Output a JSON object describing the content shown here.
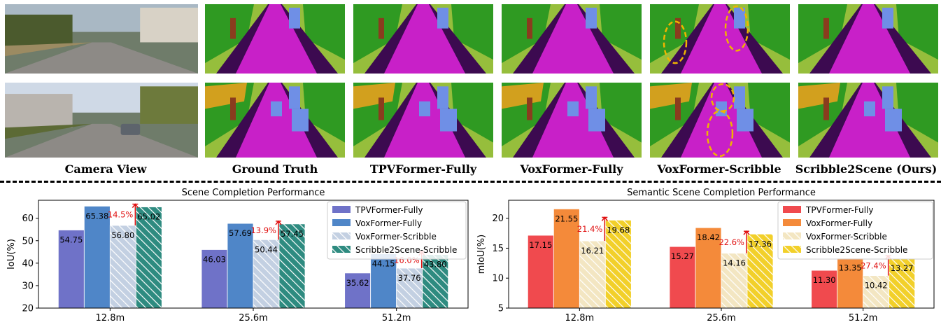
{
  "columns": [
    "Camera View",
    "Ground Truth",
    "TPVFormer-Fully",
    "VoxFormer-Fully",
    "VoxFormer-Scribble",
    "Scribble2Scene (Ours)"
  ],
  "palette": {
    "road": "#c820c8",
    "sidewalk": "#3c0a50",
    "vegetation": "#2f9a22",
    "terrain": "#96be3c",
    "car": "#6f8fe6",
    "building": "#d2a01e",
    "trunk": "#8a3c1e",
    "highlight": "#f0b400"
  },
  "chart_data": [
    {
      "type": "bar",
      "title": "Scene Completion Performance",
      "ylabel": "IoU(%)",
      "ylim": [
        20,
        68
      ],
      "yticks": [
        20,
        30,
        40,
        50,
        60
      ],
      "categories": [
        "12.8m",
        "25.6m",
        "51.2m"
      ],
      "series": [
        {
          "name": "TPVFormer-Fully",
          "color": "#6f72c8",
          "pattern": "solid",
          "values": [
            54.75,
            46.03,
            35.62
          ]
        },
        {
          "name": "VoxFormer-Fully",
          "color": "#4f86c8",
          "pattern": "solid",
          "values": [
            65.38,
            57.69,
            44.15
          ]
        },
        {
          "name": "VoxFormer-Scribble",
          "color": "#c3d0e2",
          "pattern": "hatch",
          "values": [
            56.8,
            50.44,
            37.76
          ]
        },
        {
          "name": "Scribble2Scene-Scribble",
          "color": "#2e8b80",
          "pattern": "hatch",
          "values": [
            65.02,
            57.45,
            43.8
          ]
        }
      ],
      "value_labels": [
        [
          "54.75",
          "46.03",
          "35.62"
        ],
        [
          "65.38",
          "57.69",
          "44.15"
        ],
        [
          "56.80",
          "50.44",
          "37.76"
        ],
        [
          "65.02",
          "57.45",
          "43.80"
        ]
      ],
      "annotations": [
        "14.5%",
        "13.9%",
        "16.0%"
      ],
      "legend": "top-right"
    },
    {
      "type": "bar",
      "title": "Semantic Scene Completion Performance",
      "ylabel": "mIoU(%)",
      "ylim": [
        5,
        23
      ],
      "yticks": [
        5,
        10,
        15,
        20
      ],
      "categories": [
        "12.8m",
        "25.6m",
        "51.2m"
      ],
      "series": [
        {
          "name": "TPVFormer-Fully",
          "color": "#f04a4e",
          "pattern": "solid",
          "values": [
            17.15,
            15.27,
            11.3
          ]
        },
        {
          "name": "VoxFormer-Fully",
          "color": "#f48a3a",
          "pattern": "solid",
          "values": [
            21.55,
            18.42,
            13.35
          ]
        },
        {
          "name": "VoxFormer-Scribble",
          "color": "#f3e6c2",
          "pattern": "hatch",
          "values": [
            16.21,
            14.16,
            10.42
          ]
        },
        {
          "name": "Scribble2Scene-Scribble",
          "color": "#f2d02a",
          "pattern": "hatch",
          "values": [
            19.68,
            17.36,
            13.27
          ]
        }
      ],
      "value_labels": [
        [
          "17.15",
          "15.27",
          "11.30"
        ],
        [
          "21.55",
          "18.42",
          "13.35"
        ],
        [
          "16.21",
          "14.16",
          "10.42"
        ],
        [
          "19.68",
          "17.36",
          "13.27"
        ]
      ],
      "annotations": [
        "21.4%",
        "22.6%",
        "27.4%"
      ],
      "legend": "top-right"
    }
  ]
}
